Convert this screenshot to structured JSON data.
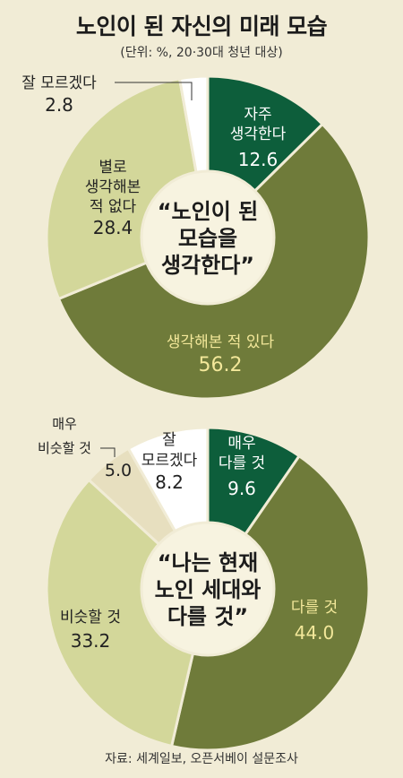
{
  "title": "노인이 된 자신의 미래 모습",
  "subtitle": "(단위: %, 20·30대 청년 대상)",
  "source": "자료: 세계일보, 오픈서베이 설문조사",
  "colors": {
    "background": "#f1ecd6",
    "dark_green": "#0d5e3b",
    "olive": "#6f7b3a",
    "light_olive": "#d3d79a",
    "beige": "#e7dfbf",
    "white": "#ffffff",
    "label_light": "#f3e89a"
  },
  "chart_data": [
    {
      "type": "pie",
      "center_label": [
        "“노인이 된",
        "모습을",
        "생각한다”"
      ],
      "slices": [
        {
          "label": [
            "자주",
            "생각한다"
          ],
          "value": 12.6,
          "display": "12.6",
          "color": "#0d5e3b"
        },
        {
          "label": [
            "생각해본 적 있다"
          ],
          "value": 56.2,
          "display": "56.2",
          "color": "#6f7b3a"
        },
        {
          "label": [
            "별로",
            "생각해본",
            "적 없다"
          ],
          "value": 28.4,
          "display": "28.4",
          "color": "#d3d79a"
        },
        {
          "label": [
            "잘 모르겠다"
          ],
          "value": 2.8,
          "display": "2.8",
          "color": "#ffffff"
        }
      ]
    },
    {
      "type": "pie",
      "center_label": [
        "“나는 현재",
        "노인 세대와",
        "다를 것”"
      ],
      "slices": [
        {
          "label": [
            "매우",
            "다를 것"
          ],
          "value": 9.6,
          "display": "9.6",
          "color": "#0d5e3b"
        },
        {
          "label": [
            "다를 것"
          ],
          "value": 44.0,
          "display": "44.0",
          "color": "#6f7b3a"
        },
        {
          "label": [
            "비슷할 것"
          ],
          "value": 33.2,
          "display": "33.2",
          "color": "#d3d79a"
        },
        {
          "label": [
            "매우",
            "비슷할 것"
          ],
          "value": 5.0,
          "display": "5.0",
          "color": "#e7dfbf"
        },
        {
          "label": [
            "잘",
            "모르겠다"
          ],
          "value": 8.2,
          "display": "8.2",
          "color": "#ffffff"
        }
      ]
    }
  ]
}
